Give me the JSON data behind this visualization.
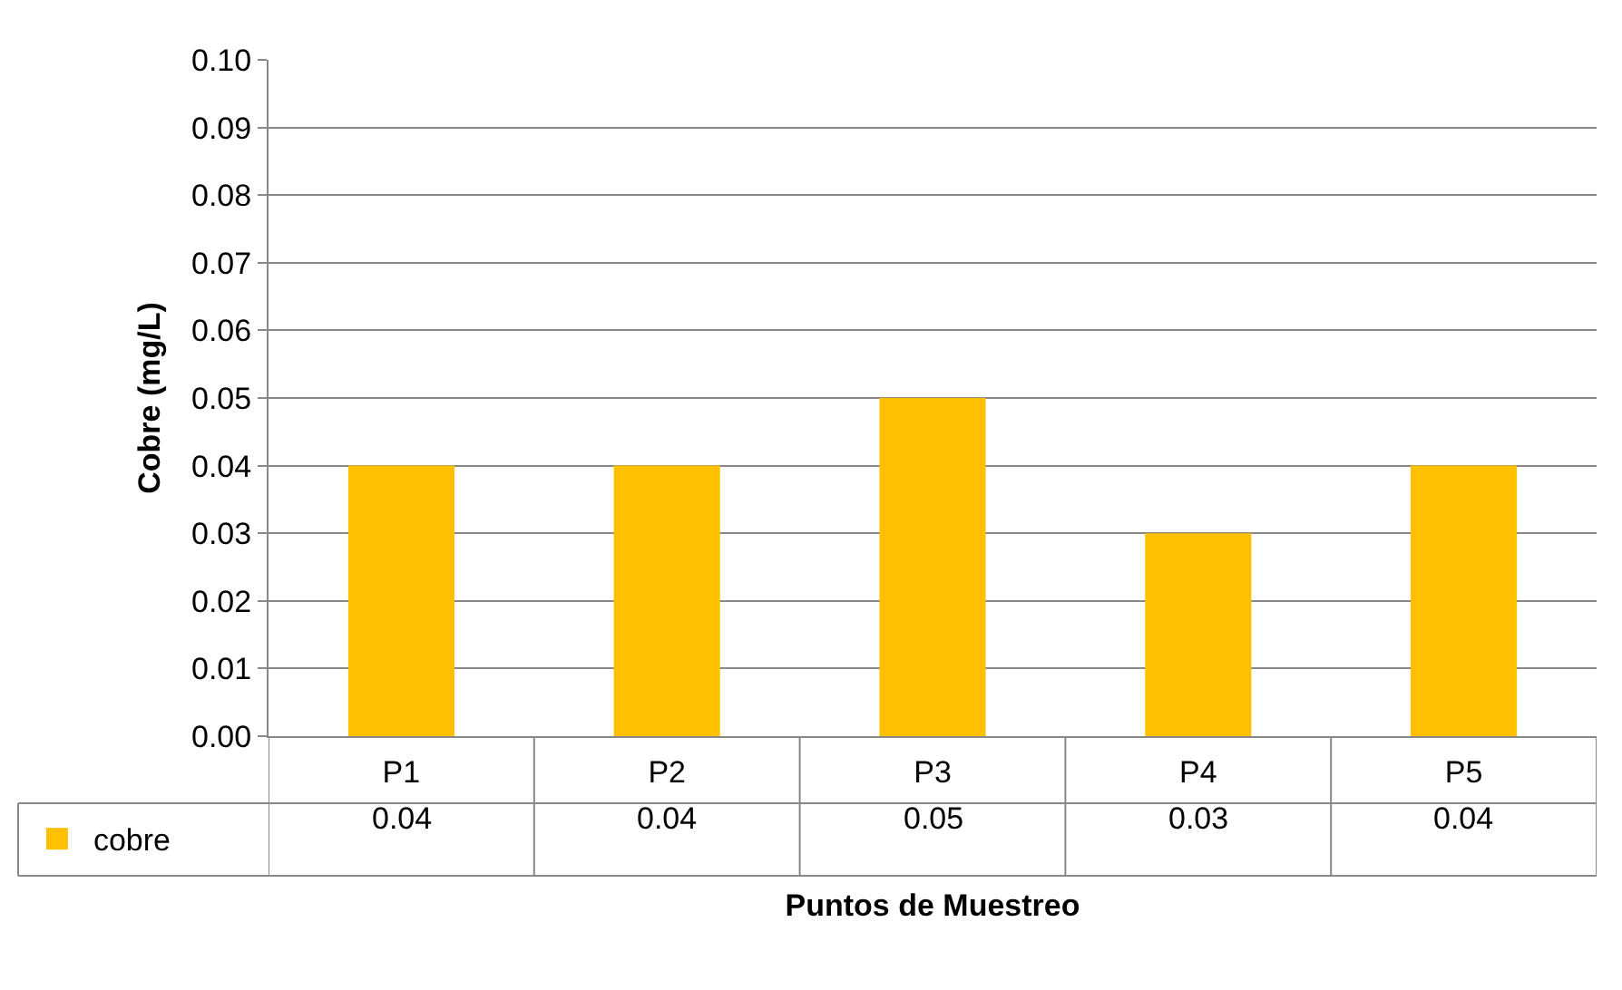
{
  "chart_data": {
    "type": "bar",
    "xlabel": "Puntos de Muestreo",
    "ylabel": "Cobre (mg/L)",
    "categories": [
      "P1",
      "P2",
      "P3",
      "P4",
      "P5"
    ],
    "series": [
      {
        "name": "cobre",
        "color": "#ffc000",
        "values": [
          0.04,
          0.04,
          0.05,
          0.03,
          0.04
        ]
      }
    ],
    "ylim": [
      0,
      0.1
    ],
    "yticks": [
      {
        "value": 0,
        "label": "0.00"
      },
      {
        "value": 0.01,
        "label": "0.01"
      },
      {
        "value": 0.02,
        "label": "0.02"
      },
      {
        "value": 0.03,
        "label": "0.03"
      },
      {
        "value": 0.04,
        "label": "0.04"
      },
      {
        "value": 0.05,
        "label": "0.05"
      },
      {
        "value": 0.06,
        "label": "0.06"
      },
      {
        "value": 0.07,
        "label": "0.07"
      },
      {
        "value": 0.08,
        "label": "0.08"
      },
      {
        "value": 0.09,
        "label": "0.09"
      },
      {
        "value": 0.1,
        "label": "0.10"
      }
    ],
    "grid": "y",
    "legend": "bottom",
    "data_labels": true
  }
}
